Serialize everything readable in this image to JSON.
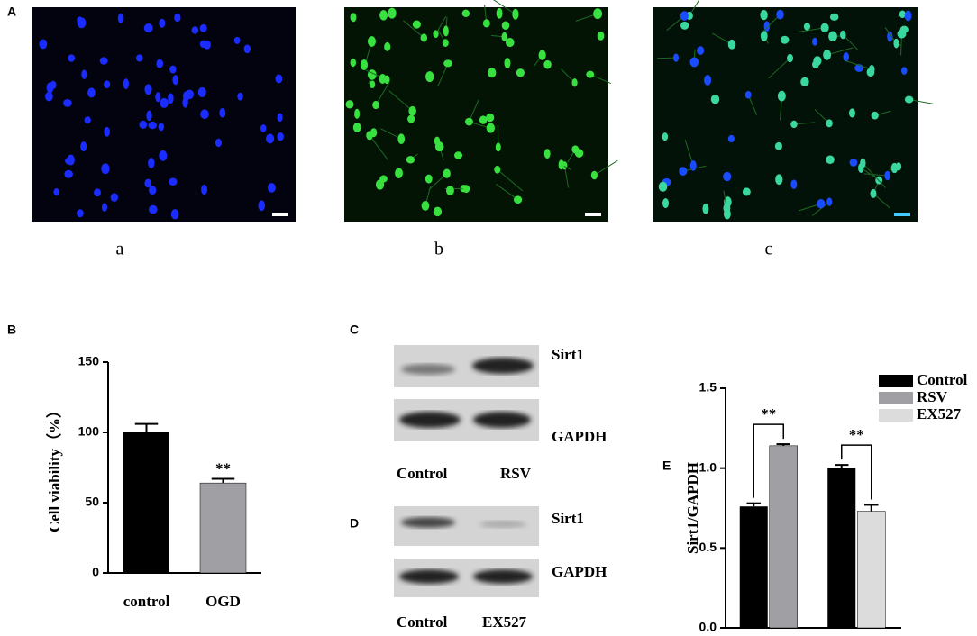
{
  "panel_labels": [
    "A",
    "B",
    "C",
    "D",
    "E"
  ],
  "image_captions": [
    "a",
    "b",
    "c"
  ],
  "blots": [
    {
      "bands": [
        "Sirt1",
        "GAPDH"
      ],
      "lanes": [
        "Control",
        "RSV"
      ]
    },
    {
      "bands": [
        "Sirt1",
        "GAPDH"
      ],
      "lanes": [
        "Control",
        "EX527"
      ]
    }
  ],
  "chart_data": [
    {
      "type": "bar",
      "y_label": "Cell viability（%）",
      "categories": [
        "control",
        "OGD"
      ],
      "values": [
        100,
        64
      ],
      "errors": [
        6,
        3
      ],
      "colors": [
        "#000000",
        "#a0a0a4"
      ],
      "annotations": [
        null,
        "**"
      ],
      "ylim": [
        0,
        150
      ],
      "yticks": [
        0,
        50,
        100,
        150
      ]
    },
    {
      "type": "grouped_bar",
      "y_label": "Sirt1/GAPDH",
      "categories": [
        null,
        null
      ],
      "series": [
        {
          "name": "Control",
          "color": "#000000",
          "values": [
            0.76,
            1.0
          ],
          "errors": [
            0.02,
            0.02
          ]
        },
        {
          "name": "RSV",
          "color": "#a0a0a4",
          "values": [
            1.14,
            null
          ],
          "errors": [
            0.01,
            null
          ]
        },
        {
          "name": "EX527",
          "color": "#dcdcdc",
          "values": [
            null,
            0.73
          ],
          "errors": [
            null,
            0.04
          ]
        }
      ],
      "annotations": [
        "**",
        "**"
      ],
      "legend": "upper right",
      "ylim": [
        0,
        1.5
      ],
      "yticks": [
        {
          "value": 0,
          "label": "0.0"
        },
        0.5,
        {
          "value": 1,
          "label": "1.0"
        },
        1.5
      ]
    }
  ]
}
